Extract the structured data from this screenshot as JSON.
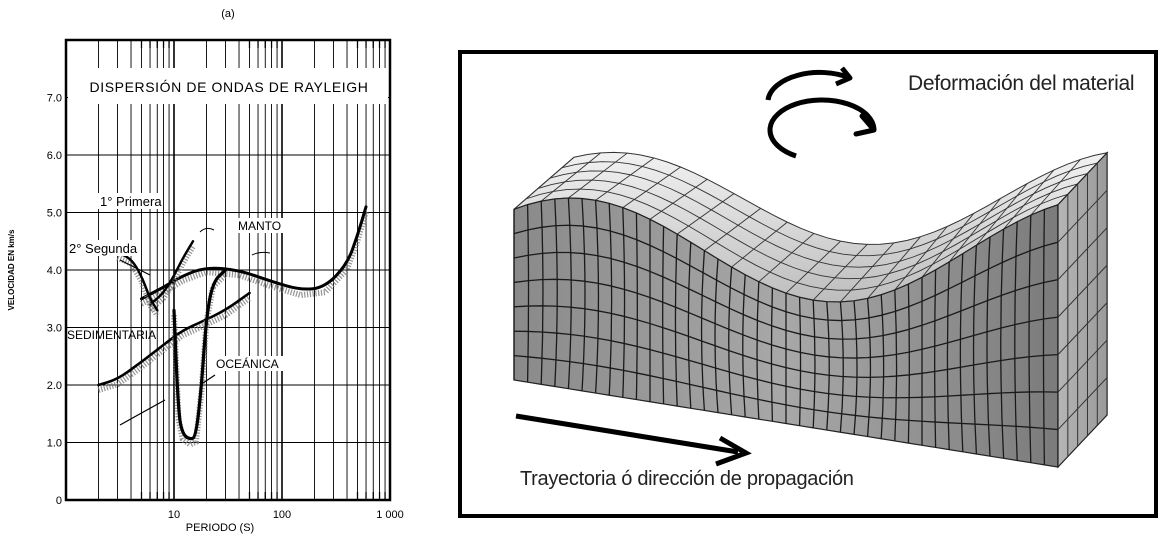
{
  "chart": {
    "panel_label": "(a)",
    "title": "DISPERSIÓN DE ONDAS DE RAYLEIGH",
    "xlabel": "PERIODO (S)",
    "ylabel": "VELOCIDAD EN km/s",
    "y_ticks": [
      "0",
      "1.0",
      "2.0",
      "3.0",
      "4.0",
      "5.0",
      "6.0",
      "7.0"
    ],
    "x_ticks": [
      "10",
      "100",
      "1 000"
    ],
    "labels": {
      "primera": "1° Primera",
      "segunda": "2° Segunda",
      "manto": "MANTO",
      "sedimentaria": "SEDIMENTARIA",
      "oceanica": "OCEÁNICA"
    }
  },
  "chart_data": {
    "type": "line",
    "title": "DISPERSIÓN DE ONDAS DE RAYLEIGH",
    "xlabel": "PERIODO (S)",
    "ylabel": "VELOCIDAD EN km/s",
    "xscale": "log",
    "xlim": [
      1,
      1000
    ],
    "ylim": [
      0,
      8
    ],
    "grid": true,
    "series": [
      {
        "name": "MANTO",
        "x": [
          5,
          8,
          12,
          20,
          40,
          80,
          150,
          250,
          400,
          500,
          600
        ],
        "y": [
          3.5,
          3.7,
          3.9,
          4.05,
          4.0,
          3.8,
          3.65,
          3.7,
          4.1,
          4.6,
          5.1
        ]
      },
      {
        "name": "SEDIMENTARIA",
        "x": [
          2,
          3,
          5,
          8,
          12,
          18,
          30,
          50
        ],
        "y": [
          2.0,
          2.1,
          2.4,
          2.7,
          2.95,
          3.1,
          3.3,
          3.6
        ]
      },
      {
        "name": "OCEÁNICA",
        "x": [
          10,
          11,
          12,
          14,
          16,
          18,
          20,
          23,
          30
        ],
        "y": [
          3.3,
          1.5,
          1.15,
          1.05,
          1.1,
          2.0,
          3.2,
          3.8,
          4.0
        ]
      },
      {
        "name": "1° Primera",
        "x": [
          6,
          8,
          10,
          12,
          15
        ],
        "y": [
          3.4,
          3.6,
          3.9,
          4.2,
          4.5
        ]
      },
      {
        "name": "2° Segunda",
        "x": [
          3,
          4,
          5,
          6,
          7
        ],
        "y": [
          4.3,
          4.2,
          3.9,
          3.5,
          3.3
        ]
      }
    ]
  },
  "diagram": {
    "top_caption": "Deformación del material",
    "bottom_caption": "Trayectoria ó dirección de propagación"
  }
}
